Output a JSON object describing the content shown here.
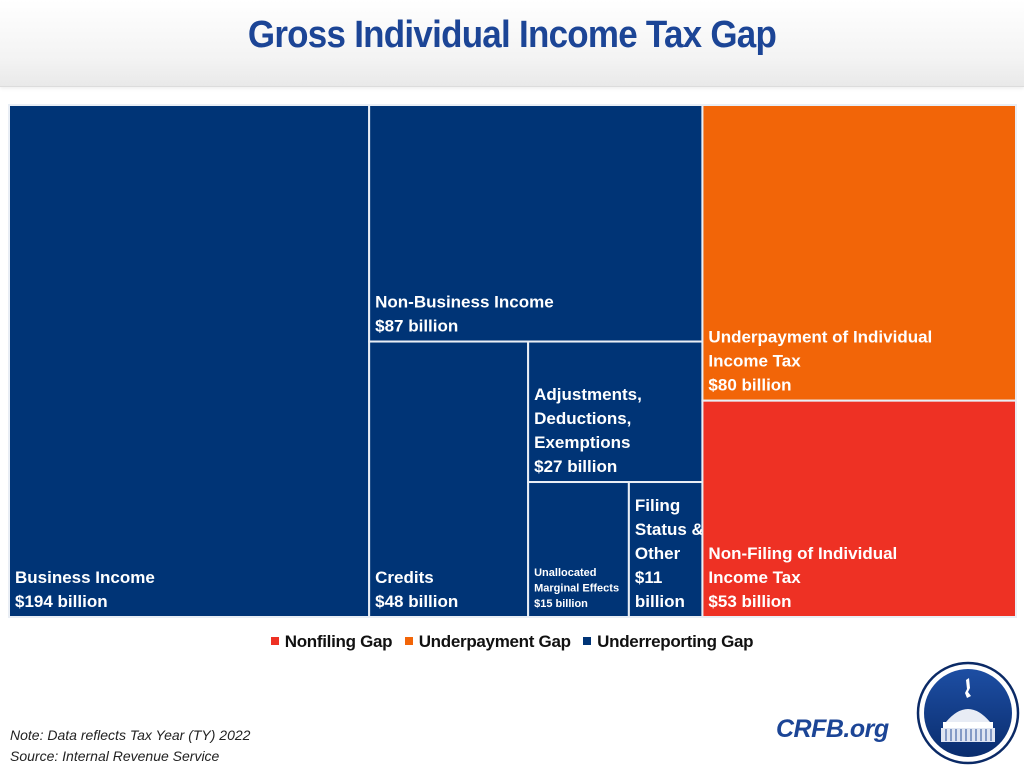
{
  "header": {
    "title": "Gross Individual Income Tax Gap"
  },
  "chart_data": {
    "type": "treemap",
    "title": "Gross Individual Income Tax Gap",
    "units": "billion USD",
    "colors": {
      "Nonfiling Gap": "#ee3124",
      "Underpayment Gap": "#f26508",
      "Underreporting Gap": "#003476"
    },
    "legend": {
      "placement": "bottom-center",
      "entries": [
        {
          "label": "Nonfiling Gap",
          "color": "#ee3124"
        },
        {
          "label": "Underpayment Gap",
          "color": "#f26508"
        },
        {
          "label": "Underreporting Gap",
          "color": "#003476"
        }
      ]
    },
    "groups": [
      {
        "name": "Underreporting Gap",
        "items": [
          {
            "name": "Business Income",
            "value": 194,
            "lines": [
              "Business Income",
              "$194 billion"
            ]
          },
          {
            "name": "Non-Business Income",
            "value": 87,
            "lines": [
              "Non-Business Income",
              "$87 billion"
            ]
          },
          {
            "name": "Credits",
            "value": 48,
            "lines": [
              "Credits",
              "$48 billion"
            ]
          },
          {
            "name": "Adjustments, Deductions, Exemptions",
            "value": 27,
            "lines": [
              "Adjustments,",
              "Deductions,",
              "Exemptions",
              "$27 billion"
            ]
          },
          {
            "name": "Unallocated Marginal Effects",
            "value": 15,
            "lines": [
              "Unallocated",
              "Marginal Effects",
              "$15 billion"
            ]
          },
          {
            "name": "Filing Status & Other",
            "value": 11,
            "lines": [
              "Filing",
              "Status &",
              "Other",
              "$11",
              "billion"
            ]
          }
        ]
      },
      {
        "name": "Underpayment Gap",
        "items": [
          {
            "name": "Underpayment of Individual Income Tax",
            "value": 80,
            "lines": [
              "Underpayment of Individual",
              "Income Tax",
              "$80 billion"
            ]
          }
        ]
      },
      {
        "name": "Nonfiling Gap",
        "items": [
          {
            "name": "Non-Filing of Individual Income Tax",
            "value": 53,
            "lines": [
              "Non-Filing of Individual",
              "Income Tax",
              "$53 billion"
            ]
          }
        ]
      }
    ]
  },
  "footer": {
    "note": "Note: Data reflects Tax Year (TY) 2022",
    "source": "Source: Internal Revenue Service",
    "brand": "CRFB.org",
    "logo_icon": "capitol-dome-logo-icon"
  }
}
